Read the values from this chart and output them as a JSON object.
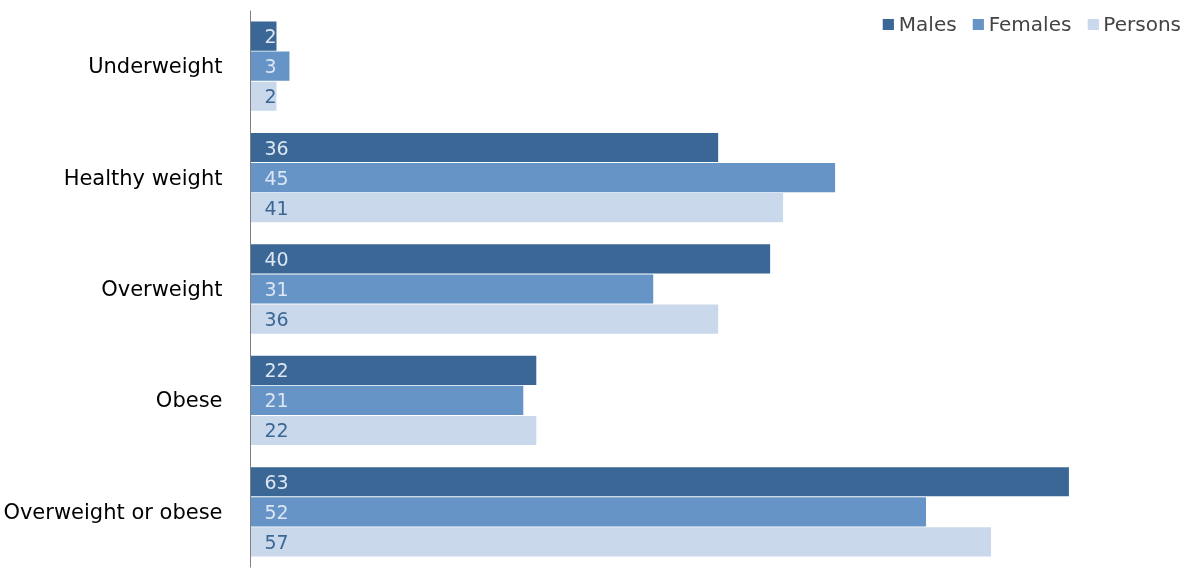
{
  "chart_data": {
    "type": "bar",
    "orientation": "horizontal",
    "categories": [
      "Underweight",
      "Healthy weight",
      "Overweight",
      "Obese",
      "Overweight or obese"
    ],
    "series": [
      {
        "name": "Males",
        "color": "#3a6796",
        "values": [
          2,
          36,
          40,
          22,
          63
        ]
      },
      {
        "name": "Females",
        "color": "#6694c6",
        "values": [
          3,
          45,
          31,
          21,
          52
        ]
      },
      {
        "name": "Persons",
        "color": "#c9d8ea",
        "values": [
          2,
          41,
          36,
          22,
          57
        ]
      }
    ],
    "data_labels": true,
    "legend": "top right",
    "grid": false
  }
}
